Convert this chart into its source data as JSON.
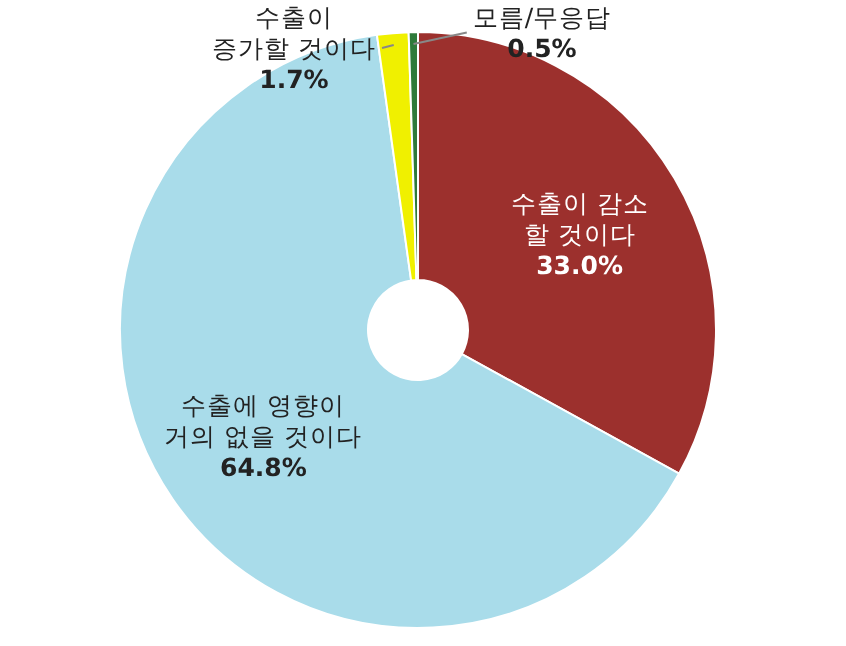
{
  "chart_data": {
    "type": "donut",
    "categories": [
      "수출이 감소\n할 것이다",
      "수출에 영향이\n거의 없을 것이다",
      "수출이\n증가할 것이다",
      "모름/무응답"
    ],
    "values": [
      33.0,
      64.8,
      1.7,
      0.5
    ],
    "value_labels": [
      "33.0%",
      "64.8%",
      "1.7%",
      "0.5%"
    ],
    "colors": [
      "#9c302d",
      "#a9dcea",
      "#f0f000",
      "#2f7a3a"
    ]
  }
}
